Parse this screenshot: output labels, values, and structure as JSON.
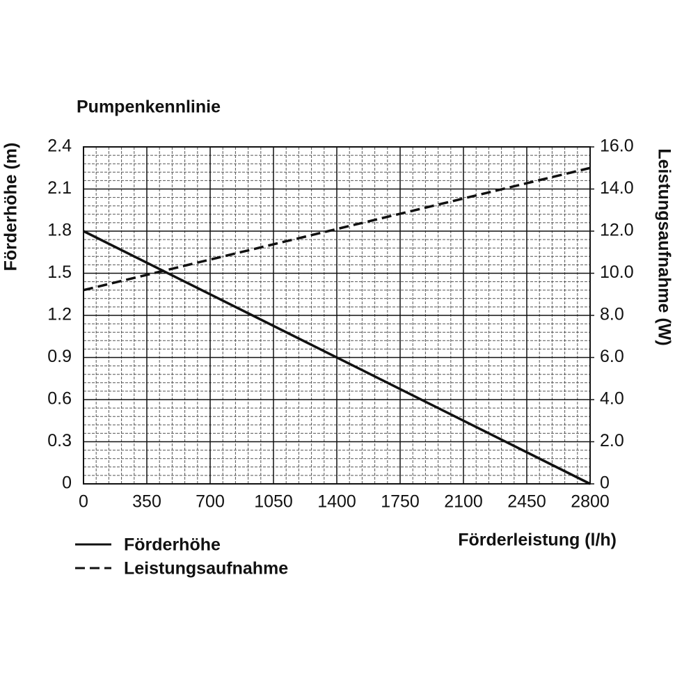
{
  "chart_data": {
    "type": "line",
    "title": "Pumpenkennlinie",
    "x_label": "Förderleistung (l/h)",
    "y_label": "Förderhöhe (m)",
    "y2_label": "Leistungsaufnahme (W)",
    "x": [
      0,
      2800
    ],
    "series": [
      {
        "name": "Förderhöhe",
        "color": "#111111",
        "line_style": "solid",
        "values": [
          1.8,
          0
        ]
      },
      {
        "name": "Leistungsaufnahme",
        "color": "#111111",
        "line_style": "dashed",
        "axis": "y2",
        "values": [
          9.2,
          15.0
        ]
      }
    ],
    "xlim": [
      0,
      2800
    ],
    "xticks": [
      0,
      350,
      700,
      1050,
      1400,
      1750,
      2100,
      2450,
      2800
    ],
    "ylim": [
      0,
      2.4
    ],
    "yticks": [
      0,
      0.3,
      0.6,
      0.9,
      1.2,
      1.5,
      1.8,
      2.1,
      2.4
    ],
    "y2lim": [
      0,
      16
    ],
    "y2ticks": [
      0,
      {
        "value": 2,
        "label": "2.0"
      },
      {
        "value": 4,
        "label": "4.0"
      },
      {
        "value": 6,
        "label": "6.0"
      },
      {
        "value": 8,
        "label": "8.0"
      },
      {
        "value": 10,
        "label": "10.0"
      },
      {
        "value": 12,
        "label": "12.0"
      },
      {
        "value": 14,
        "label": "14.0"
      },
      {
        "value": 16,
        "label": "16.0"
      }
    ],
    "grid": true,
    "legend_position": "bottom-left"
  }
}
